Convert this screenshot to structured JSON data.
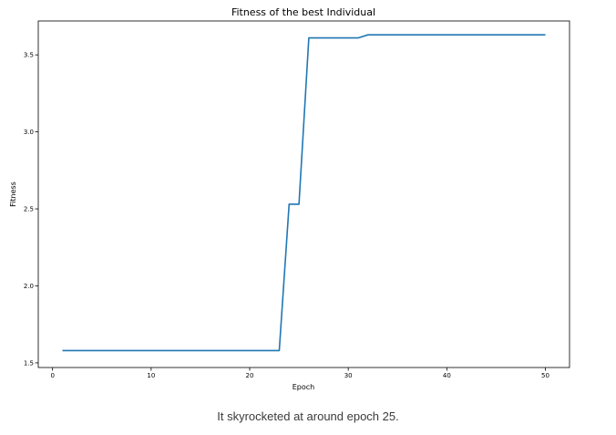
{
  "chart_data": {
    "type": "line",
    "title": "Fitness of the best Individual",
    "xlabel": "Epoch",
    "ylabel": "Fitness",
    "xlim": [
      -1.45,
      52.45
    ],
    "ylim": [
      1.47,
      3.72
    ],
    "xticks": [
      0,
      10,
      20,
      30,
      40,
      50
    ],
    "yticks": [
      1.5,
      2.0,
      2.5,
      3.0,
      3.5
    ],
    "ytick_labels": [
      "1.5",
      "2.0",
      "2.5",
      "3.0",
      "3.5"
    ],
    "grid": false,
    "series": [
      {
        "color": "#1f77b4",
        "x": [
          1,
          23,
          24,
          25,
          26,
          31,
          32,
          50
        ],
        "y": [
          1.58,
          1.58,
          2.53,
          2.53,
          3.61,
          3.61,
          3.63,
          3.63
        ]
      }
    ]
  },
  "caption": "It skyrocketed at around epoch 25."
}
